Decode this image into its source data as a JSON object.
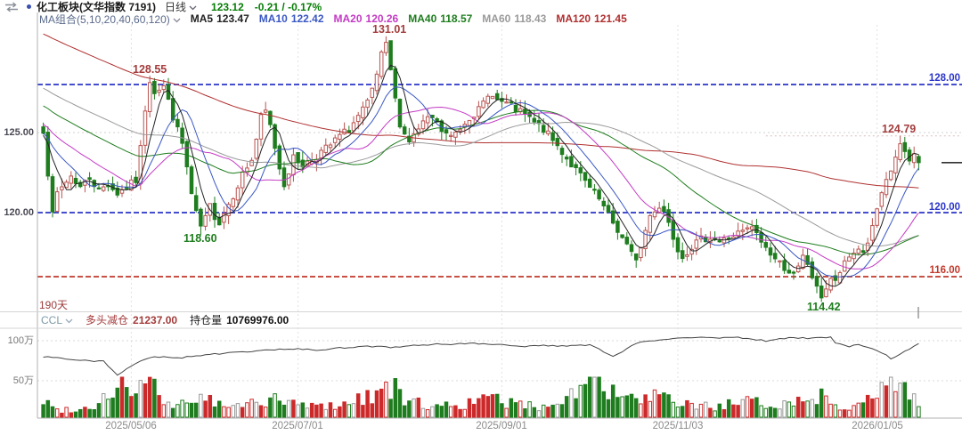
{
  "header": {
    "title": "化工板块(文华指数 7191)",
    "period_label": "日线",
    "last_price": "123.12",
    "change": "-0.21 / -0.17%"
  },
  "ma_bar": {
    "label": "MA组合(5,10,20,40,60,120)",
    "items": [
      {
        "name": "MA5",
        "value": "123.47",
        "color": "#222222"
      },
      {
        "name": "MA10",
        "value": "122.42",
        "color": "#3a57c5"
      },
      {
        "name": "MA20",
        "value": "120.26",
        "color": "#c43ac4"
      },
      {
        "name": "MA40",
        "value": "118.57",
        "color": "#1e7d1e"
      },
      {
        "name": "MA60",
        "value": "118.43",
        "color": "#9a9a9a"
      },
      {
        "name": "MA120",
        "value": "121.45",
        "color": "#b03030"
      }
    ]
  },
  "main_chart": {
    "left_labels": [
      "125.00",
      "120.00"
    ],
    "right_labels": [
      {
        "text": "128.00",
        "color": "#2b35c8"
      },
      {
        "text": "120.00",
        "color": "#2b35c8"
      },
      {
        "text": "116.00",
        "color": "#c0392b"
      }
    ]
  },
  "sub_panel": {
    "days_label": "190天",
    "indicator": "CCL",
    "position_label": "多头减仓",
    "position_value": "21237.00",
    "oi_label": "持仓量",
    "oi_value": "10769976.00",
    "y_labels": [
      "100万",
      "50万"
    ]
  },
  "x_axis": {
    "dates": [
      {
        "label": "2025/05/06",
        "bar": 19
      },
      {
        "label": "2025/07/01",
        "bar": 55
      },
      {
        "label": "2025/09/01",
        "bar": 99
      },
      {
        "label": "2025/11/03",
        "bar": 137
      },
      {
        "label": "2026/01/05",
        "bar": 180
      }
    ]
  },
  "colors": {
    "up": "#b85450",
    "down": "#1e7d1e",
    "price_green": "#067d06",
    "label_red": "#a33c3c",
    "label_green": "#1e7d1e",
    "ccl": "#7d9aa8",
    "days": "#9c3b3b",
    "ma_group_label": "#5b6b8c",
    "title_text": "#1a1a1a",
    "oi_line": "#444444",
    "vol_red": "#cc2a2a",
    "vol_green": "#1e7d1e"
  },
  "chart_data": {
    "type": "candlestick",
    "instrument": "化工板块(文华指数 7191)",
    "period": "日线",
    "bars_shown": 190,
    "last": {
      "close": 123.12,
      "change": -0.21,
      "change_pct": "-0.17%"
    },
    "moving_averages": {
      "MA5": 123.47,
      "MA10": 122.42,
      "MA20": 120.26,
      "MA40": 118.57,
      "MA60": 118.43,
      "MA120": 121.45
    },
    "marked_points": [
      {
        "label": "128.55",
        "bar": 23,
        "price": 128.55,
        "type": "swing-high"
      },
      {
        "label": "131.01",
        "bar": 74,
        "price": 131.01,
        "type": "period-high"
      },
      {
        "label": "118.60",
        "bar": 34,
        "price": 118.6,
        "type": "swing-low"
      },
      {
        "label": "114.42",
        "bar": 168,
        "price": 114.42,
        "type": "period-low"
      },
      {
        "label": "124.79",
        "bar": 185,
        "price": 124.79,
        "type": "swing-high"
      }
    ],
    "reference_lines": [
      {
        "level": 128.0,
        "color": "#2b35c8",
        "style": "dashed"
      },
      {
        "level": 120.0,
        "color": "#2b35c8",
        "style": "dashed"
      },
      {
        "level": 116.0,
        "color": "#c0392b",
        "style": "dashed"
      },
      {
        "level": 125.0,
        "color": "#d0d0d0",
        "style": "dotted"
      },
      {
        "level": 124.79,
        "color": "#d9bfbf",
        "style": "dotted",
        "from_bar": 156
      }
    ],
    "close_anchors": [
      [
        0,
        125.2
      ],
      [
        1,
        122.5
      ],
      [
        2,
        119.8
      ],
      [
        3,
        121.2
      ],
      [
        4,
        121.6
      ],
      [
        6,
        122.3
      ],
      [
        8,
        121.6
      ],
      [
        10,
        122.2
      ],
      [
        12,
        121.4
      ],
      [
        14,
        121.8
      ],
      [
        16,
        121.2
      ],
      [
        18,
        121.6
      ],
      [
        20,
        122.0
      ],
      [
        21,
        124.0
      ],
      [
        22,
        126.5
      ],
      [
        23,
        128.3
      ],
      [
        24,
        127.6
      ],
      [
        26,
        127.9
      ],
      [
        28,
        126.0
      ],
      [
        30,
        124.3
      ],
      [
        31,
        122.8
      ],
      [
        32,
        121.1
      ],
      [
        33,
        119.9
      ],
      [
        34,
        119.1
      ],
      [
        35,
        119.6
      ],
      [
        36,
        120.4
      ],
      [
        37,
        119.8
      ],
      [
        38,
        119.4
      ],
      [
        39,
        120.0
      ],
      [
        41,
        121.1
      ],
      [
        43,
        122.4
      ],
      [
        45,
        123.3
      ],
      [
        46,
        124.6
      ],
      [
        47,
        125.9
      ],
      [
        48,
        126.3
      ],
      [
        49,
        125.4
      ],
      [
        50,
        124.1
      ],
      [
        51,
        122.8
      ],
      [
        52,
        121.8
      ],
      [
        53,
        122.6
      ],
      [
        54,
        123.4
      ],
      [
        56,
        123.0
      ],
      [
        58,
        123.3
      ],
      [
        60,
        123.8
      ],
      [
        62,
        124.2
      ],
      [
        64,
        124.8
      ],
      [
        66,
        125.2
      ],
      [
        68,
        126.0
      ],
      [
        70,
        126.8
      ],
      [
        71,
        127.6
      ],
      [
        72,
        128.6
      ],
      [
        73,
        129.8
      ],
      [
        74,
        130.4
      ],
      [
        75,
        128.9
      ],
      [
        76,
        127.0
      ],
      [
        77,
        125.6
      ],
      [
        78,
        124.9
      ],
      [
        79,
        124.5
      ],
      [
        80,
        124.8
      ],
      [
        82,
        125.6
      ],
      [
        84,
        125.9
      ],
      [
        86,
        125.1
      ],
      [
        88,
        124.7
      ],
      [
        90,
        125.3
      ],
      [
        92,
        126.0
      ],
      [
        94,
        126.4
      ],
      [
        95,
        126.8
      ],
      [
        96,
        127.2
      ],
      [
        97,
        127.5
      ],
      [
        98,
        127.0
      ],
      [
        100,
        126.8
      ],
      [
        102,
        126.4
      ],
      [
        104,
        126.1
      ],
      [
        106,
        125.6
      ],
      [
        108,
        125.2
      ],
      [
        110,
        124.5
      ],
      [
        112,
        123.8
      ],
      [
        114,
        123.0
      ],
      [
        116,
        122.3
      ],
      [
        118,
        121.5
      ],
      [
        120,
        120.8
      ],
      [
        122,
        119.8
      ],
      [
        124,
        118.9
      ],
      [
        126,
        117.9
      ],
      [
        127,
        117.4
      ],
      [
        128,
        117.2
      ],
      [
        129,
        117.8
      ],
      [
        130,
        118.9
      ],
      [
        131,
        119.8
      ],
      [
        132,
        120.2
      ],
      [
        133,
        120.4
      ],
      [
        134,
        120.1
      ],
      [
        135,
        119.4
      ],
      [
        136,
        118.5
      ],
      [
        137,
        117.8
      ],
      [
        138,
        117.3
      ],
      [
        140,
        117.9
      ],
      [
        142,
        118.3
      ],
      [
        144,
        118.5
      ],
      [
        146,
        118.2
      ],
      [
        148,
        118.4
      ],
      [
        150,
        118.7
      ],
      [
        152,
        118.9
      ],
      [
        153,
        119.1
      ],
      [
        154,
        118.6
      ],
      [
        156,
        117.8
      ],
      [
        158,
        117.1
      ],
      [
        160,
        116.6
      ],
      [
        162,
        116.1
      ],
      [
        163,
        116.5
      ],
      [
        164,
        117.2
      ],
      [
        165,
        116.8
      ],
      [
        166,
        116.0
      ],
      [
        167,
        115.2
      ],
      [
        168,
        114.8
      ],
      [
        169,
        115.3
      ],
      [
        170,
        115.9
      ],
      [
        171,
        115.6
      ],
      [
        172,
        116.3
      ],
      [
        174,
        117.2
      ],
      [
        176,
        117.8
      ],
      [
        177,
        117.5
      ],
      [
        178,
        118.2
      ],
      [
        179,
        119.0
      ],
      [
        180,
        120.2
      ],
      [
        181,
        121.0
      ],
      [
        182,
        121.9
      ],
      [
        183,
        122.6
      ],
      [
        184,
        123.5
      ],
      [
        185,
        124.2
      ],
      [
        186,
        123.6
      ],
      [
        187,
        123.2
      ],
      [
        188,
        123.6
      ],
      [
        189,
        123.12
      ]
    ],
    "volume_anchors": [
      [
        0,
        18
      ],
      [
        3,
        8
      ],
      [
        10,
        10
      ],
      [
        15,
        30
      ],
      [
        17,
        38
      ],
      [
        20,
        25
      ],
      [
        22,
        42
      ],
      [
        24,
        30
      ],
      [
        27,
        12
      ],
      [
        34,
        22
      ],
      [
        40,
        10
      ],
      [
        48,
        20
      ],
      [
        55,
        14
      ],
      [
        60,
        12
      ],
      [
        66,
        16
      ],
      [
        73,
        30
      ],
      [
        75,
        36
      ],
      [
        78,
        18
      ],
      [
        85,
        12
      ],
      [
        90,
        14
      ],
      [
        97,
        20
      ],
      [
        105,
        12
      ],
      [
        110,
        14
      ],
      [
        118,
        40
      ],
      [
        120,
        45
      ],
      [
        123,
        25
      ],
      [
        128,
        18
      ],
      [
        132,
        22
      ],
      [
        138,
        14
      ],
      [
        145,
        12
      ],
      [
        152,
        16
      ],
      [
        158,
        14
      ],
      [
        162,
        18
      ],
      [
        166,
        20
      ],
      [
        168,
        25
      ],
      [
        172,
        14
      ],
      [
        176,
        12
      ],
      [
        180,
        25
      ],
      [
        183,
        38
      ],
      [
        185,
        40
      ],
      [
        187,
        30
      ],
      [
        189,
        20
      ]
    ],
    "open_interest": {
      "unit": "万",
      "gridlines": [
        100,
        50
      ],
      "anchors": [
        [
          0,
          80
        ],
        [
          8,
          76
        ],
        [
          13,
          74
        ],
        [
          16,
          57
        ],
        [
          20,
          72
        ],
        [
          24,
          80
        ],
        [
          30,
          79
        ],
        [
          36,
          83
        ],
        [
          45,
          87
        ],
        [
          55,
          90
        ],
        [
          60,
          88
        ],
        [
          64,
          91
        ],
        [
          70,
          93
        ],
        [
          75,
          92
        ],
        [
          80,
          94
        ],
        [
          85,
          96
        ],
        [
          88,
          95
        ],
        [
          92,
          97
        ],
        [
          95,
          96
        ],
        [
          99,
          95
        ],
        [
          103,
          92
        ],
        [
          108,
          94
        ],
        [
          112,
          93
        ],
        [
          118,
          95
        ],
        [
          123,
          80
        ],
        [
          126,
          90
        ],
        [
          128,
          97
        ],
        [
          132,
          100
        ],
        [
          137,
          103
        ],
        [
          141,
          104
        ],
        [
          145,
          103
        ],
        [
          150,
          104
        ],
        [
          153,
          102
        ],
        [
          156,
          100
        ],
        [
          158,
          102
        ],
        [
          162,
          104
        ],
        [
          166,
          103
        ],
        [
          170,
          104
        ],
        [
          171,
          98
        ],
        [
          174,
          93
        ],
        [
          176,
          95
        ],
        [
          178,
          92
        ],
        [
          181,
          85
        ],
        [
          183,
          78
        ],
        [
          185,
          83
        ],
        [
          187,
          90
        ],
        [
          189,
          97
        ]
      ]
    }
  }
}
